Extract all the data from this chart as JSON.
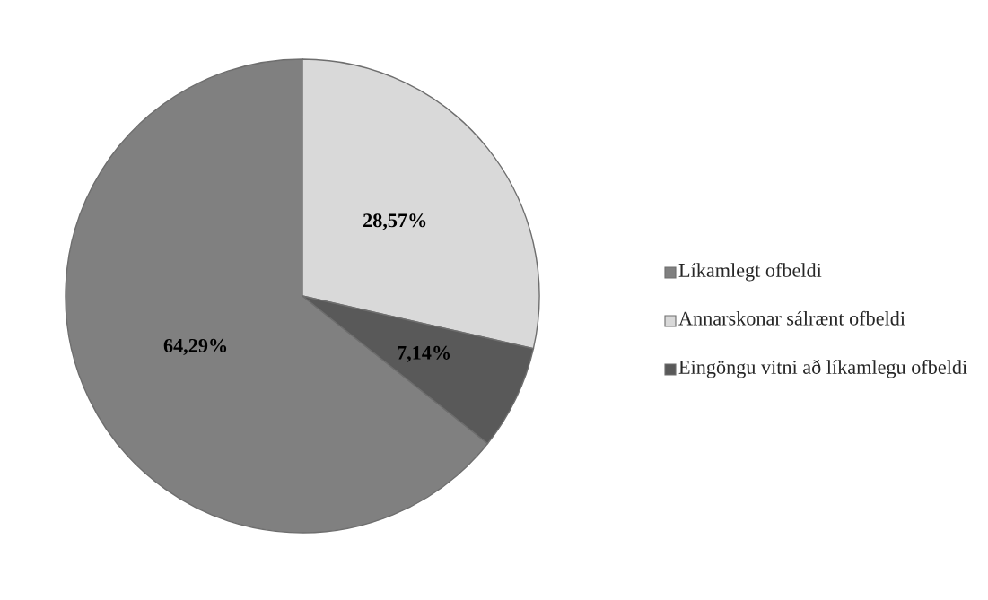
{
  "chart_data": {
    "type": "pie",
    "categories": [
      "Líkamlegt ofbeldi",
      "Annarskonar sálrænt ofbeldi",
      "Eingöngu vitni að líkamlegu ofbeldi"
    ],
    "values": [
      64.29,
      28.57,
      7.14
    ],
    "colors": [
      "#808080",
      "#d9d9d9",
      "#595959"
    ],
    "value_labels": [
      "64,29%",
      "28,57%",
      "7,14%"
    ],
    "legend": "right"
  }
}
